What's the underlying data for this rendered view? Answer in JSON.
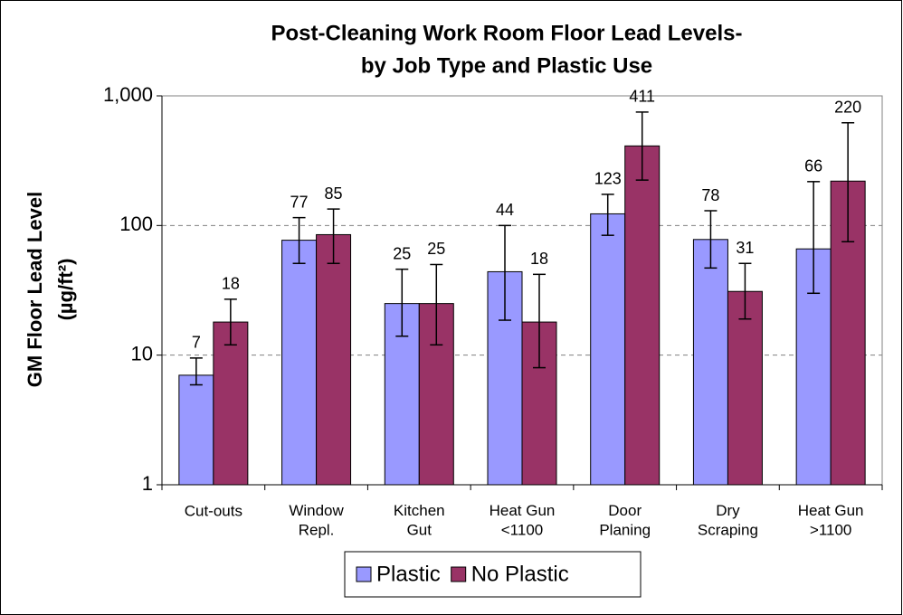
{
  "chart_data": {
    "type": "bar",
    "title": [
      "Post-Cleaning Work Room Floor Lead Levels-",
      "by Job Type and Plastic Use"
    ],
    "ylabel": [
      "GM Floor Lead Level",
      "(µg/ft²)"
    ],
    "categories": [
      "Cut-outs",
      "Window\nRepl.",
      "Kitchen\nGut",
      "Heat Gun\n<1100",
      "Door\nPlaning",
      "Dry\nScraping",
      "Heat Gun\n>1100"
    ],
    "series": [
      {
        "name": "Plastic",
        "color": "#9999ff",
        "values": [
          7,
          77,
          25,
          44,
          123,
          78,
          66
        ],
        "lower": [
          5.9,
          51,
          14,
          18.6,
          84,
          47,
          30
        ],
        "upper": [
          9.5,
          115,
          46,
          100,
          174,
          130,
          218
        ]
      },
      {
        "name": "No Plastic",
        "color": "#993366",
        "values": [
          18,
          85,
          25,
          18,
          411,
          31,
          220
        ],
        "lower": [
          12,
          51,
          12,
          8,
          224,
          19,
          75
        ],
        "upper": [
          27,
          134,
          50,
          42,
          750,
          51,
          620
        ]
      }
    ],
    "ylim": [
      1,
      1000
    ],
    "log_y": true,
    "yticks": [
      1,
      10,
      100,
      {
        "value": 1000,
        "label": "1,000"
      }
    ],
    "grid": true,
    "legend": "bottom"
  }
}
